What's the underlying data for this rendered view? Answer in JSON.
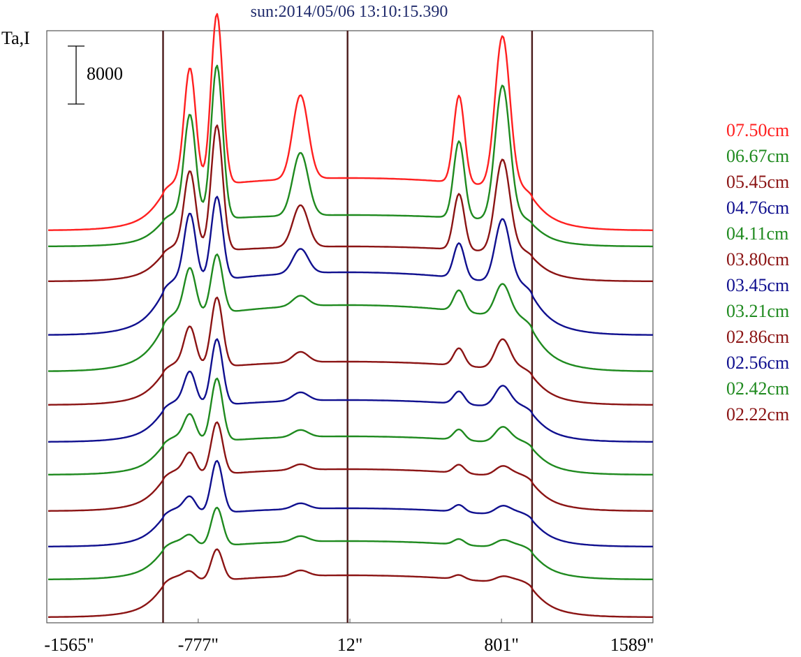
{
  "chart_data": {
    "type": "line",
    "title": "sun:2014/05/06 13:10:15.390",
    "ylabel": "Ta,I",
    "scale_bar_label": "8000",
    "x_ticks": [
      "-1565\"",
      "-777\"",
      "12\"",
      "801\"",
      "1589\""
    ],
    "xlim": [
      -1565,
      1589
    ],
    "markers_x": [
      -960,
      0,
      960
    ],
    "colors": {
      "red": "#ff2020",
      "green": "#1f8a1f",
      "maroon": "#8b1414",
      "blue": "#10108f",
      "marker": "#4a1a1a"
    },
    "series": [
      {
        "name": "07.50cm",
        "color": "#ff2020",
        "baseline": 330,
        "disk": 75,
        "lim1": 15,
        "lim2": 8,
        "p_nA": 165,
        "p_nB": 245,
        "p_c": 120,
        "p_sA": 125,
        "p_sB": 215
      },
      {
        "name": "06.67cm",
        "color": "#1f8a1f",
        "baseline": 353,
        "disk": 45,
        "lim1": 15,
        "lim2": 10,
        "p_nA": 145,
        "p_nB": 220,
        "p_c": 90,
        "p_sA": 110,
        "p_sB": 190
      },
      {
        "name": "05.45cm",
        "color": "#8b1414",
        "baseline": 403,
        "disk": 50,
        "lim1": 15,
        "lim2": 10,
        "p_nA": 110,
        "p_nB": 180,
        "p_c": 60,
        "p_sA": 80,
        "p_sB": 130
      },
      {
        "name": "04.76cm",
        "color": "#10108f",
        "baseline": 480,
        "disk": 90,
        "lim1": 15,
        "lim2": 10,
        "p_nA": 95,
        "p_nB": 120,
        "p_c": 35,
        "p_sA": 50,
        "p_sB": 90
      },
      {
        "name": "04.11cm",
        "color": "#1f8a1f",
        "baseline": 532,
        "disk": 95,
        "lim1": 15,
        "lim2": 10,
        "p_nA": 65,
        "p_nB": 85,
        "p_c": 15,
        "p_sA": 30,
        "p_sB": 45
      },
      {
        "name": "03.80cm",
        "color": "#8b1414",
        "baseline": 580,
        "disk": 62,
        "lim1": 15,
        "lim2": 10,
        "p_nA": 55,
        "p_nB": 100,
        "p_c": 15,
        "p_sA": 25,
        "p_sB": 40
      },
      {
        "name": "03.45cm",
        "color": "#10108f",
        "baseline": 633,
        "disk": 60,
        "lim1": 15,
        "lim2": 10,
        "p_nA": 45,
        "p_nB": 95,
        "p_c": 12,
        "p_sA": 18,
        "p_sB": 28
      },
      {
        "name": "03.21cm",
        "color": "#1f8a1f",
        "baseline": 680,
        "disk": 55,
        "lim1": 15,
        "lim2": 10,
        "p_nA": 35,
        "p_nB": 90,
        "p_c": 10,
        "p_sA": 15,
        "p_sB": 20
      },
      {
        "name": "02.86cm",
        "color": "#8b1414",
        "baseline": 732,
        "disk": 60,
        "lim1": 15,
        "lim2": 10,
        "p_nA": 28,
        "p_nB": 75,
        "p_c": 8,
        "p_sA": 12,
        "p_sB": 12
      },
      {
        "name": "02.56cm",
        "color": "#10108f",
        "baseline": 783,
        "disk": 55,
        "lim1": 15,
        "lim2": 10,
        "p_nA": 20,
        "p_nB": 75,
        "p_c": 8,
        "p_sA": 10,
        "p_sB": 10
      },
      {
        "name": "02.42cm",
        "color": "#1f8a1f",
        "baseline": 830,
        "disk": 55,
        "lim1": 15,
        "lim2": 10,
        "p_nA": 12,
        "p_nB": 55,
        "p_c": 8,
        "p_sA": 8,
        "p_sB": 8
      },
      {
        "name": "02.22cm",
        "color": "#8b1414",
        "baseline": 884,
        "disk": 60,
        "lim1": 15,
        "lim2": 10,
        "p_nA": 10,
        "p_nB": 45,
        "p_c": 8,
        "p_sA": 6,
        "p_sB": 6
      }
    ]
  }
}
